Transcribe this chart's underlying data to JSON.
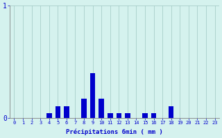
{
  "hours": [
    0,
    1,
    2,
    3,
    4,
    5,
    6,
    7,
    8,
    9,
    10,
    11,
    12,
    13,
    14,
    15,
    16,
    17,
    18,
    19,
    20,
    21,
    22,
    23
  ],
  "values": [
    0,
    0,
    0,
    0,
    0.04,
    0.1,
    0.1,
    0,
    0.17,
    0.4,
    0.17,
    0.04,
    0.04,
    0.04,
    0,
    0.04,
    0.04,
    0,
    0.1,
    0,
    0,
    0,
    0,
    0
  ],
  "bar_color": "#0000cc",
  "bg_color": "#d5f2ee",
  "grid_color": "#9fc8c2",
  "axis_color": "#808080",
  "text_color": "#0000cc",
  "ylim": [
    0,
    1.0
  ],
  "xlim": [
    -0.5,
    23.5
  ],
  "xlabel": "Précipitations 6min ( mm )",
  "ytick_labels": [
    "0",
    "1"
  ],
  "ytick_vals": [
    0,
    1
  ],
  "xticks": [
    0,
    1,
    2,
    3,
    4,
    5,
    6,
    7,
    8,
    9,
    10,
    11,
    12,
    13,
    14,
    15,
    16,
    17,
    18,
    19,
    20,
    21,
    22,
    23
  ]
}
